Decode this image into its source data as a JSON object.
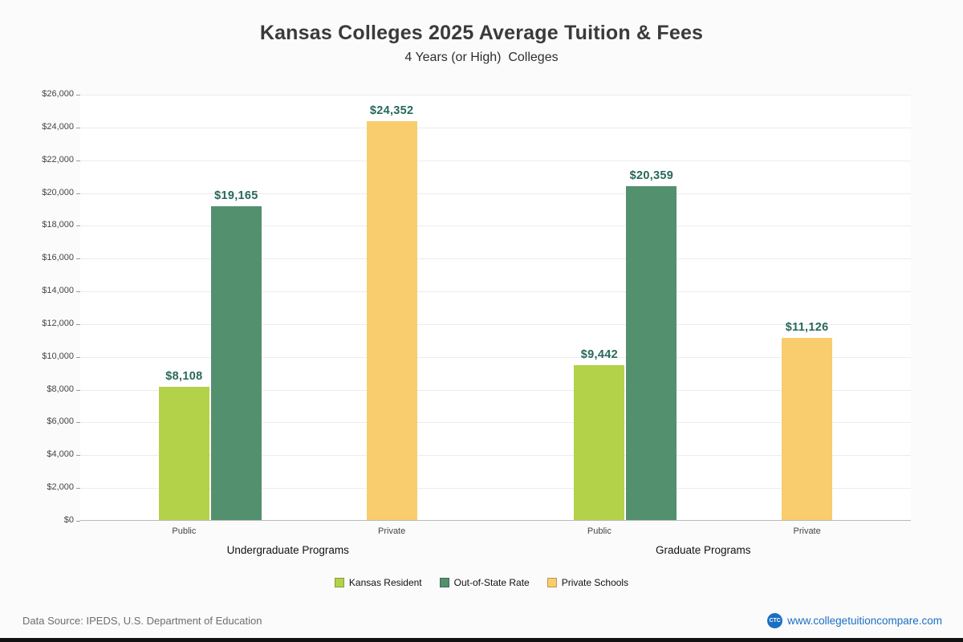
{
  "page": {
    "title": "Kansas Colleges 2025 Average Tuition & Fees",
    "subtitle": "4 Years (or High)  Colleges",
    "footer": {
      "source": "Data Source: IPEDS, U.S. Department of Education",
      "website": "www.collegetuitioncompare.com",
      "logo_text": "CTC"
    }
  },
  "chart_data": {
    "type": "bar",
    "title": "Kansas Colleges 2025 Average Tuition & Fees",
    "subtitle": "4 Years (or High) Colleges",
    "y_axis": {
      "min": 0,
      "max": 26000,
      "step": 2000,
      "tick_prefix": "$"
    },
    "grid": true,
    "legend_position": "bottom",
    "value_label_color": "#27695a",
    "groups": [
      {
        "label": "Undergraduate Programs",
        "categories": [
          {
            "label": "Public",
            "bars": [
              {
                "series": "Kansas Resident",
                "value": 8108,
                "label": "$8,108"
              },
              {
                "series": "Out-of-State Rate",
                "value": 19165,
                "label": "$19,165"
              }
            ]
          },
          {
            "label": "Private",
            "bars": [
              {
                "series": "Private Schools",
                "value": 24352,
                "label": "$24,352"
              }
            ]
          }
        ]
      },
      {
        "label": "Graduate Programs",
        "categories": [
          {
            "label": "Public",
            "bars": [
              {
                "series": "Kansas Resident",
                "value": 9442,
                "label": "$9,442"
              },
              {
                "series": "Out-of-State Rate",
                "value": 20359,
                "label": "$20,359"
              }
            ]
          },
          {
            "label": "Private",
            "bars": [
              {
                "series": "Private Schools",
                "value": 11126,
                "label": "$11,126"
              }
            ]
          }
        ]
      }
    ],
    "legend": [
      {
        "label": "Kansas Resident",
        "color": "#b3d249"
      },
      {
        "label": "Out-of-State Rate",
        "color": "#53906e"
      },
      {
        "label": "Private Schools",
        "color": "#f9cc6d"
      }
    ]
  }
}
